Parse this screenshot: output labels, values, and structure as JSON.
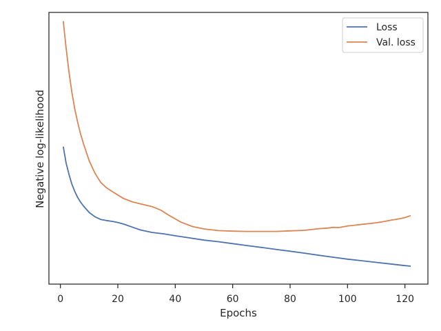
{
  "chart_data": {
    "type": "line",
    "title": "",
    "xlabel": "Epochs",
    "ylabel": "Negative log-likelihood",
    "xlim": [
      -4,
      128
    ],
    "ylim": [
      0,
      1
    ],
    "y_tick_labels_shown": false,
    "x_ticks": [
      0,
      20,
      40,
      60,
      80,
      100,
      120
    ],
    "grid": false,
    "legend_position": "top-right",
    "series": [
      {
        "name": "Loss",
        "color": "#4c72b0",
        "x": [
          1,
          2,
          3,
          4,
          5,
          6,
          7,
          8,
          10,
          12,
          14,
          16,
          18,
          20,
          22,
          25,
          28,
          32,
          36,
          40,
          45,
          50,
          55,
          60,
          65,
          70,
          75,
          80,
          85,
          90,
          95,
          100,
          105,
          110,
          115,
          120,
          122
        ],
        "y": [
          0.506,
          0.445,
          0.403,
          0.368,
          0.341,
          0.319,
          0.302,
          0.288,
          0.264,
          0.248,
          0.238,
          0.234,
          0.231,
          0.227,
          0.221,
          0.21,
          0.199,
          0.19,
          0.185,
          0.178,
          0.17,
          0.162,
          0.156,
          0.149,
          0.142,
          0.135,
          0.128,
          0.121,
          0.114,
          0.106,
          0.099,
          0.092,
          0.086,
          0.08,
          0.074,
          0.068,
          0.066
        ]
      },
      {
        "name": "Val. loss",
        "color": "#dd8452",
        "x": [
          1,
          2,
          3,
          4,
          5,
          6,
          7,
          8,
          10,
          12,
          14,
          16,
          18,
          20,
          22,
          25,
          28,
          32,
          35,
          38,
          42,
          46,
          50,
          55,
          60,
          65,
          70,
          75,
          80,
          85,
          90,
          93,
          95,
          97,
          100,
          102,
          105,
          108,
          110,
          112,
          115,
          118,
          120,
          122
        ],
        "y": [
          0.968,
          0.868,
          0.779,
          0.706,
          0.645,
          0.596,
          0.554,
          0.518,
          0.455,
          0.409,
          0.375,
          0.355,
          0.341,
          0.328,
          0.315,
          0.303,
          0.295,
          0.285,
          0.272,
          0.252,
          0.228,
          0.212,
          0.203,
          0.197,
          0.195,
          0.194,
          0.194,
          0.194,
          0.196,
          0.198,
          0.204,
          0.206,
          0.209,
          0.208,
          0.214,
          0.216,
          0.22,
          0.223,
          0.226,
          0.229,
          0.235,
          0.24,
          0.245,
          0.252
        ]
      }
    ]
  }
}
